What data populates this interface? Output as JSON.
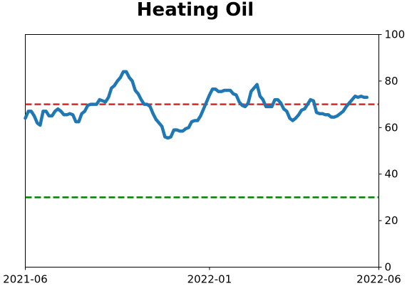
{
  "chart_data": {
    "type": "line",
    "title": "Heating Oil",
    "series": [
      {
        "color": "#1f77b4",
        "values": [
          64,
          67,
          67,
          65,
          62,
          61,
          67,
          67,
          65,
          65,
          67,
          68,
          67,
          65.5,
          65.5,
          66,
          65.5,
          62.5,
          62.5,
          66,
          67,
          69.5,
          70,
          70,
          70,
          72,
          71.5,
          71,
          73,
          77,
          78,
          80,
          81.5,
          84,
          84,
          81.5,
          80,
          76,
          74.5,
          72,
          70,
          70,
          69,
          66,
          63.5,
          62,
          60.5,
          56,
          55.5,
          56,
          59,
          59,
          58.5,
          58.5,
          59.5,
          60,
          62.5,
          63,
          63,
          65,
          68,
          71,
          74,
          76.5,
          76.5,
          75.5,
          75.5,
          76,
          76,
          76,
          74.5,
          74,
          71,
          69.5,
          69,
          70.5,
          75.5,
          77,
          78.5,
          73.5,
          72,
          69,
          69,
          69,
          72,
          72,
          70.5,
          68,
          67,
          64,
          63,
          64,
          65.5,
          67.5,
          68,
          70,
          72,
          71.5,
          66.5,
          66,
          66,
          65.5,
          65.5,
          64.5,
          64.5,
          65,
          66,
          67,
          69,
          70.5,
          72,
          73.5,
          73,
          73.5,
          73,
          73
        ]
      }
    ],
    "hlines": [
      {
        "value": 70,
        "color": "#d62728"
      },
      {
        "value": 30,
        "color": "#008000"
      }
    ],
    "xlim": [
      0,
      119
    ],
    "xticks": [
      {
        "value": 0,
        "label": "2021-06"
      },
      {
        "value": 62,
        "label": "2022-01"
      },
      {
        "value": 119,
        "label": "2022-06"
      }
    ],
    "ylim": [
      0,
      100
    ],
    "yticks": [
      0,
      20,
      40,
      60,
      80,
      100
    ]
  }
}
